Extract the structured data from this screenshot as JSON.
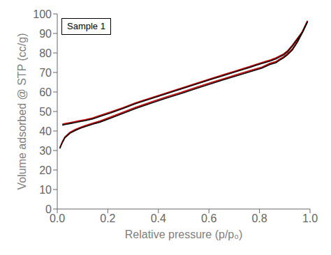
{
  "chart_data": {
    "type": "line",
    "xlabel": "Relative pressure (p/p₀)",
    "ylabel": "Volume adsorbed @ STP (cc/g)",
    "xlim": [
      0,
      1.0
    ],
    "ylim": [
      0,
      100
    ],
    "xticks": [
      {
        "value": 0,
        "label": "0.0"
      },
      0.2,
      0.4,
      0.6,
      0.8,
      {
        "value": 1,
        "label": "1.0"
      }
    ],
    "yticks": [
      0,
      10,
      20,
      30,
      40,
      50,
      60,
      70,
      80,
      90,
      100
    ],
    "grid": false,
    "legend": "upper left",
    "series": [
      {
        "color": "#cc0000",
        "x": [
          0.01,
          0.02,
          0.03,
          0.05,
          0.07,
          0.09,
          0.11,
          0.14,
          0.17,
          0.21,
          0.26,
          0.31,
          0.37,
          0.43,
          0.49,
          0.55,
          0.61,
          0.66,
          0.71,
          0.76,
          0.81,
          0.84,
          0.865,
          0.88,
          0.895,
          0.91,
          0.93,
          0.95,
          0.97,
          0.99
        ],
        "values": [
          31.5,
          34.5,
          37.0,
          39.3,
          40.7,
          41.8,
          42.8,
          44.0,
          45.2,
          47.1,
          49.6,
          52.1,
          54.8,
          57.4,
          59.8,
          62.4,
          64.9,
          66.9,
          68.9,
          70.9,
          72.8,
          74.6,
          75.6,
          76.9,
          78.1,
          79.6,
          82.1,
          86.1,
          91.1,
          96.5
        ]
      },
      {
        "color": "#cc0000",
        "x": [
          0.99,
          0.97,
          0.95,
          0.93,
          0.91,
          0.895,
          0.88,
          0.865,
          0.845,
          0.82,
          0.79,
          0.76,
          0.71,
          0.66,
          0.61,
          0.55,
          0.49,
          0.43,
          0.37,
          0.31,
          0.26,
          0.21,
          0.17,
          0.14,
          0.11,
          0.09,
          0.07,
          0.05,
          0.03,
          0.02
        ],
        "values": [
          96.5,
          91.0,
          87.5,
          84.0,
          81.0,
          79.5,
          78.5,
          77.5,
          76.5,
          75.5,
          74.3,
          73.0,
          71.0,
          69.0,
          67.0,
          64.5,
          62.0,
          59.5,
          57.0,
          54.5,
          52.0,
          49.7,
          48.0,
          46.7,
          45.8,
          45.3,
          44.8,
          44.3,
          43.8,
          43.5
        ]
      },
      {
        "name": "Sample 1",
        "color": "#000000",
        "x": [
          0.01,
          0.02,
          0.03,
          0.05,
          0.07,
          0.09,
          0.11,
          0.14,
          0.17,
          0.21,
          0.26,
          0.31,
          0.37,
          0.43,
          0.49,
          0.55,
          0.61,
          0.66,
          0.71,
          0.76,
          0.81,
          0.84,
          0.865,
          0.88,
          0.895,
          0.91,
          0.93,
          0.95,
          0.97,
          0.99
        ],
        "values": [
          31.0,
          34.0,
          36.5,
          38.8,
          40.2,
          41.3,
          42.2,
          43.5,
          44.6,
          46.5,
          49.0,
          51.5,
          54.2,
          56.8,
          59.2,
          61.8,
          64.3,
          66.3,
          68.3,
          70.3,
          72.2,
          74.0,
          75.0,
          76.3,
          77.5,
          79.0,
          81.5,
          85.5,
          90.5,
          96.0
        ]
      },
      {
        "color": "#000000",
        "x": [
          0.99,
          0.97,
          0.95,
          0.93,
          0.91,
          0.895,
          0.88,
          0.865,
          0.845,
          0.82,
          0.79,
          0.76,
          0.71,
          0.66,
          0.61,
          0.55,
          0.49,
          0.43,
          0.37,
          0.31,
          0.26,
          0.21,
          0.17,
          0.14,
          0.11,
          0.09,
          0.07,
          0.05,
          0.03,
          0.02
        ],
        "values": [
          96.0,
          90.5,
          87.0,
          83.5,
          80.5,
          79.0,
          78.0,
          77.0,
          76.0,
          75.0,
          73.8,
          72.5,
          70.5,
          68.5,
          66.5,
          64.0,
          61.5,
          59.0,
          56.5,
          54.0,
          51.5,
          49.2,
          47.5,
          46.2,
          45.3,
          44.8,
          44.3,
          43.8,
          43.3,
          43.0
        ]
      }
    ]
  }
}
